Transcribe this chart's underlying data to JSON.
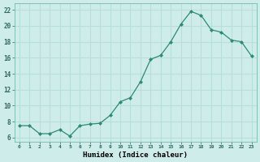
{
  "x": [
    0,
    1,
    2,
    3,
    4,
    5,
    6,
    7,
    8,
    9,
    10,
    11,
    12,
    13,
    14,
    15,
    16,
    17,
    18,
    19,
    20,
    21,
    22,
    23
  ],
  "y": [
    7.5,
    7.5,
    6.5,
    6.5,
    7.0,
    6.2,
    7.5,
    7.7,
    7.8,
    8.8,
    10.5,
    11.0,
    13.0,
    15.8,
    16.3,
    18.0,
    20.2,
    21.8,
    21.3,
    19.5,
    19.2,
    18.2,
    18.0,
    16.2
  ],
  "xlabel": "Humidex (Indice chaleur)",
  "xlim_lo": -0.5,
  "xlim_hi": 23.5,
  "ylim_lo": 5.5,
  "ylim_hi": 22.8,
  "yticks": [
    6,
    8,
    10,
    12,
    14,
    16,
    18,
    20,
    22
  ],
  "xticks": [
    0,
    1,
    2,
    3,
    4,
    5,
    6,
    7,
    8,
    9,
    10,
    11,
    12,
    13,
    14,
    15,
    16,
    17,
    18,
    19,
    20,
    21,
    22,
    23
  ],
  "xtick_labels": [
    "0",
    "1",
    "2",
    "3",
    "4",
    "5",
    "6",
    "7",
    "8",
    "9",
    "10",
    "11",
    "12",
    "13",
    "14",
    "15",
    "16",
    "17",
    "18",
    "19",
    "20",
    "21",
    "22",
    "23"
  ],
  "line_color": "#2d8b74",
  "bg_color": "#ceecea",
  "grid_color": "#b8deda"
}
